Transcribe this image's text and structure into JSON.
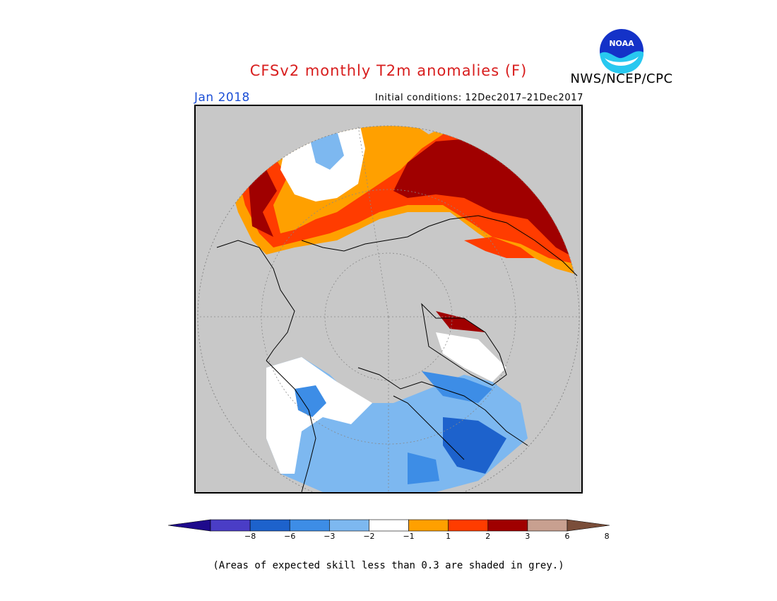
{
  "header": {
    "title": "CFSv2 monthly T2m anomalies (F)",
    "month": "Jan 2018",
    "initial_conditions": "Initial conditions: 12Dec2017–21Dec2017",
    "agency": "NWS/NCEP/CPC",
    "logo_text": "NOAA"
  },
  "legend": {
    "ticks": [
      "−8",
      "−6",
      "−3",
      "−2",
      "−1",
      "1",
      "2",
      "3",
      "6",
      "8"
    ],
    "colors": [
      "#1e0a8c",
      "#4a3dc6",
      "#1d62cc",
      "#3d8de6",
      "#7db8f0",
      "#ffffff",
      "#ffa000",
      "#ff3c00",
      "#a00000",
      "#c8a090",
      "#7a4e3a"
    ]
  },
  "map": {
    "missing_color": "#c8c8c8"
  },
  "footer": {
    "note": "(Areas of expected skill less than 0.3 are shaded in grey.)"
  }
}
